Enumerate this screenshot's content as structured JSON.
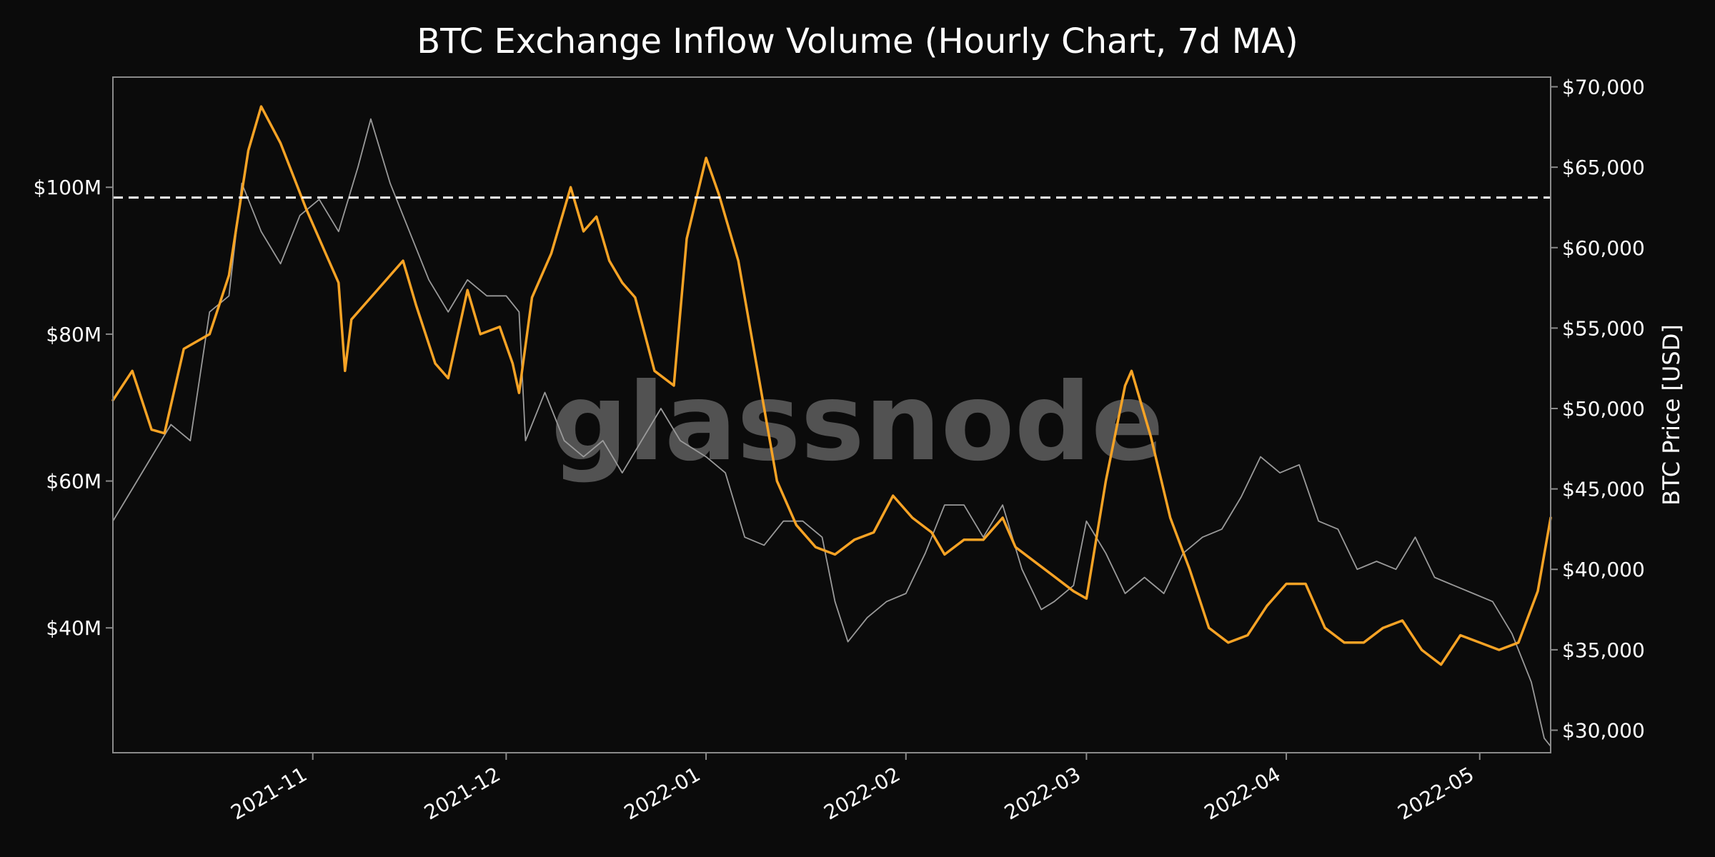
{
  "title": "BTC Exchange Inflow Volume (Hourly Chart, 7d MA)",
  "watermark": "glassnode",
  "colors": {
    "background": "#0b0b0b",
    "inflow": "#f7a325",
    "price": "#9a9a9a",
    "threshold": "#ffffff",
    "frame": "#8a8a8a"
  },
  "chart_data": {
    "type": "line",
    "title": "BTC Exchange Inflow Volume (Hourly Chart, 7d MA)",
    "xlabel": "",
    "ylabel_left": "",
    "ylabel_right": "BTC Price [USD]",
    "x_range": [
      "2021-10-01",
      "2022-05-12"
    ],
    "x_ticks": [
      {
        "date": "2021-11-01",
        "label": "2021-11"
      },
      {
        "date": "2021-12-01",
        "label": "2021-12"
      },
      {
        "date": "2022-01-01",
        "label": "2022-01"
      },
      {
        "date": "2022-02-01",
        "label": "2022-02"
      },
      {
        "date": "2022-03-01",
        "label": "2022-03"
      },
      {
        "date": "2022-04-01",
        "label": "2022-04"
      },
      {
        "date": "2022-05-01",
        "label": "2022-05"
      }
    ],
    "y_left": {
      "range": [
        23000000,
        115000000
      ],
      "ticks": [
        {
          "value": 40000000,
          "label": "$40M"
        },
        {
          "value": 60000000,
          "label": "$60M"
        },
        {
          "value": 80000000,
          "label": "$80M"
        },
        {
          "value": 100000000,
          "label": "$100M"
        }
      ]
    },
    "y_right": {
      "range": [
        28600,
        70600
      ],
      "ticks": [
        {
          "value": 30000,
          "label": "$30,000"
        },
        {
          "value": 35000,
          "label": "$35,000"
        },
        {
          "value": 40000,
          "label": "$40,000"
        },
        {
          "value": 45000,
          "label": "$45,000"
        },
        {
          "value": 50000,
          "label": "$50,000"
        },
        {
          "value": 55000,
          "label": "$55,000"
        },
        {
          "value": 60000,
          "label": "$60,000"
        },
        {
          "value": 65000,
          "label": "$65,000"
        },
        {
          "value": 70000,
          "label": "$70,000"
        }
      ]
    },
    "threshold": {
      "axis": "left",
      "value": 98600000,
      "style": "dashed"
    },
    "grid": false,
    "legend": "none",
    "series": [
      {
        "axis": "left",
        "color": "#f7a325",
        "points": [
          [
            "2021-10-01",
            71000000
          ],
          [
            "2021-10-04",
            75000000
          ],
          [
            "2021-10-07",
            67000000
          ],
          [
            "2021-10-09",
            66500000
          ],
          [
            "2021-10-12",
            78000000
          ],
          [
            "2021-10-16",
            80000000
          ],
          [
            "2021-10-19",
            88000000
          ],
          [
            "2021-10-22",
            105000000
          ],
          [
            "2021-10-24",
            111000000
          ],
          [
            "2021-10-27",
            106000000
          ],
          [
            "2021-10-31",
            97000000
          ],
          [
            "2021-11-03",
            91000000
          ],
          [
            "2021-11-05",
            87000000
          ],
          [
            "2021-11-06",
            75000000
          ],
          [
            "2021-11-07",
            82000000
          ],
          [
            "2021-11-10",
            85000000
          ],
          [
            "2021-11-13",
            88000000
          ],
          [
            "2021-11-15",
            90000000
          ],
          [
            "2021-11-17",
            84000000
          ],
          [
            "2021-11-20",
            76000000
          ],
          [
            "2021-11-22",
            74000000
          ],
          [
            "2021-11-25",
            86000000
          ],
          [
            "2021-11-27",
            80000000
          ],
          [
            "2021-11-30",
            81000000
          ],
          [
            "2021-12-02",
            76000000
          ],
          [
            "2021-12-03",
            72000000
          ],
          [
            "2021-12-05",
            85000000
          ],
          [
            "2021-12-08",
            91000000
          ],
          [
            "2021-12-11",
            100000000
          ],
          [
            "2021-12-13",
            94000000
          ],
          [
            "2021-12-15",
            96000000
          ],
          [
            "2021-12-17",
            90000000
          ],
          [
            "2021-12-19",
            87000000
          ],
          [
            "2021-12-21",
            85000000
          ],
          [
            "2021-12-24",
            75000000
          ],
          [
            "2021-12-27",
            73000000
          ],
          [
            "2021-12-29",
            93000000
          ],
          [
            "2022-01-01",
            104000000
          ],
          [
            "2022-01-03",
            99000000
          ],
          [
            "2022-01-06",
            90000000
          ],
          [
            "2022-01-09",
            75000000
          ],
          [
            "2022-01-12",
            60000000
          ],
          [
            "2022-01-15",
            54000000
          ],
          [
            "2022-01-18",
            51000000
          ],
          [
            "2022-01-21",
            50000000
          ],
          [
            "2022-01-24",
            52000000
          ],
          [
            "2022-01-27",
            53000000
          ],
          [
            "2022-01-30",
            58000000
          ],
          [
            "2022-02-02",
            55000000
          ],
          [
            "2022-02-05",
            53000000
          ],
          [
            "2022-02-07",
            50000000
          ],
          [
            "2022-02-10",
            52000000
          ],
          [
            "2022-02-13",
            52000000
          ],
          [
            "2022-02-16",
            55000000
          ],
          [
            "2022-02-18",
            51000000
          ],
          [
            "2022-02-21",
            49000000
          ],
          [
            "2022-02-24",
            47000000
          ],
          [
            "2022-02-27",
            45000000
          ],
          [
            "2022-03-01",
            44000000
          ],
          [
            "2022-03-04",
            60000000
          ],
          [
            "2022-03-07",
            73000000
          ],
          [
            "2022-03-08",
            75000000
          ],
          [
            "2022-03-11",
            66000000
          ],
          [
            "2022-03-14",
            55000000
          ],
          [
            "2022-03-17",
            48000000
          ],
          [
            "2022-03-20",
            40000000
          ],
          [
            "2022-03-23",
            38000000
          ],
          [
            "2022-03-26",
            39000000
          ],
          [
            "2022-03-29",
            43000000
          ],
          [
            "2022-04-01",
            46000000
          ],
          [
            "2022-04-04",
            46000000
          ],
          [
            "2022-04-07",
            40000000
          ],
          [
            "2022-04-10",
            38000000
          ],
          [
            "2022-04-13",
            38000000
          ],
          [
            "2022-04-16",
            40000000
          ],
          [
            "2022-04-19",
            41000000
          ],
          [
            "2022-04-22",
            37000000
          ],
          [
            "2022-04-25",
            35000000
          ],
          [
            "2022-04-28",
            39000000
          ],
          [
            "2022-05-01",
            38000000
          ],
          [
            "2022-05-04",
            37000000
          ],
          [
            "2022-05-07",
            38000000
          ],
          [
            "2022-05-10",
            45000000
          ],
          [
            "2022-05-12",
            55000000
          ]
        ]
      },
      {
        "axis": "right",
        "color": "#9a9a9a",
        "points": [
          [
            "2021-10-01",
            43000
          ],
          [
            "2021-10-04",
            45000
          ],
          [
            "2021-10-07",
            47000
          ],
          [
            "2021-10-10",
            49000
          ],
          [
            "2021-10-13",
            48000
          ],
          [
            "2021-10-16",
            56000
          ],
          [
            "2021-10-19",
            57000
          ],
          [
            "2021-10-21",
            64000
          ],
          [
            "2021-10-24",
            61000
          ],
          [
            "2021-10-27",
            59000
          ],
          [
            "2021-10-30",
            62000
          ],
          [
            "2021-11-02",
            63000
          ],
          [
            "2021-11-05",
            61000
          ],
          [
            "2021-11-08",
            65000
          ],
          [
            "2021-11-10",
            68000
          ],
          [
            "2021-11-13",
            64000
          ],
          [
            "2021-11-16",
            61000
          ],
          [
            "2021-11-19",
            58000
          ],
          [
            "2021-11-22",
            56000
          ],
          [
            "2021-11-25",
            58000
          ],
          [
            "2021-11-28",
            57000
          ],
          [
            "2021-12-01",
            57000
          ],
          [
            "2021-12-03",
            56000
          ],
          [
            "2021-12-04",
            48000
          ],
          [
            "2021-12-07",
            51000
          ],
          [
            "2021-12-10",
            48000
          ],
          [
            "2021-12-13",
            47000
          ],
          [
            "2021-12-16",
            48000
          ],
          [
            "2021-12-19",
            46000
          ],
          [
            "2021-12-22",
            48000
          ],
          [
            "2021-12-25",
            50000
          ],
          [
            "2021-12-28",
            48000
          ],
          [
            "2022-01-01",
            47000
          ],
          [
            "2022-01-04",
            46000
          ],
          [
            "2022-01-07",
            42000
          ],
          [
            "2022-01-10",
            41500
          ],
          [
            "2022-01-13",
            43000
          ],
          [
            "2022-01-16",
            43000
          ],
          [
            "2022-01-19",
            42000
          ],
          [
            "2022-01-21",
            38000
          ],
          [
            "2022-01-23",
            35500
          ],
          [
            "2022-01-26",
            37000
          ],
          [
            "2022-01-29",
            38000
          ],
          [
            "2022-02-01",
            38500
          ],
          [
            "2022-02-04",
            41000
          ],
          [
            "2022-02-07",
            44000
          ],
          [
            "2022-02-10",
            44000
          ],
          [
            "2022-02-13",
            42000
          ],
          [
            "2022-02-16",
            44000
          ],
          [
            "2022-02-19",
            40000
          ],
          [
            "2022-02-22",
            37500
          ],
          [
            "2022-02-24",
            38000
          ],
          [
            "2022-02-27",
            39000
          ],
          [
            "2022-03-01",
            43000
          ],
          [
            "2022-03-04",
            41000
          ],
          [
            "2022-03-07",
            38500
          ],
          [
            "2022-03-10",
            39500
          ],
          [
            "2022-03-13",
            38500
          ],
          [
            "2022-03-16",
            41000
          ],
          [
            "2022-03-19",
            42000
          ],
          [
            "2022-03-22",
            42500
          ],
          [
            "2022-03-25",
            44500
          ],
          [
            "2022-03-28",
            47000
          ],
          [
            "2022-03-31",
            46000
          ],
          [
            "2022-04-03",
            46500
          ],
          [
            "2022-04-06",
            43000
          ],
          [
            "2022-04-09",
            42500
          ],
          [
            "2022-04-12",
            40000
          ],
          [
            "2022-04-15",
            40500
          ],
          [
            "2022-04-18",
            40000
          ],
          [
            "2022-04-21",
            42000
          ],
          [
            "2022-04-24",
            39500
          ],
          [
            "2022-04-27",
            39000
          ],
          [
            "2022-04-30",
            38500
          ],
          [
            "2022-05-03",
            38000
          ],
          [
            "2022-05-06",
            36000
          ],
          [
            "2022-05-09",
            33000
          ],
          [
            "2022-05-11",
            29500
          ],
          [
            "2022-05-12",
            29000
          ]
        ]
      }
    ]
  }
}
